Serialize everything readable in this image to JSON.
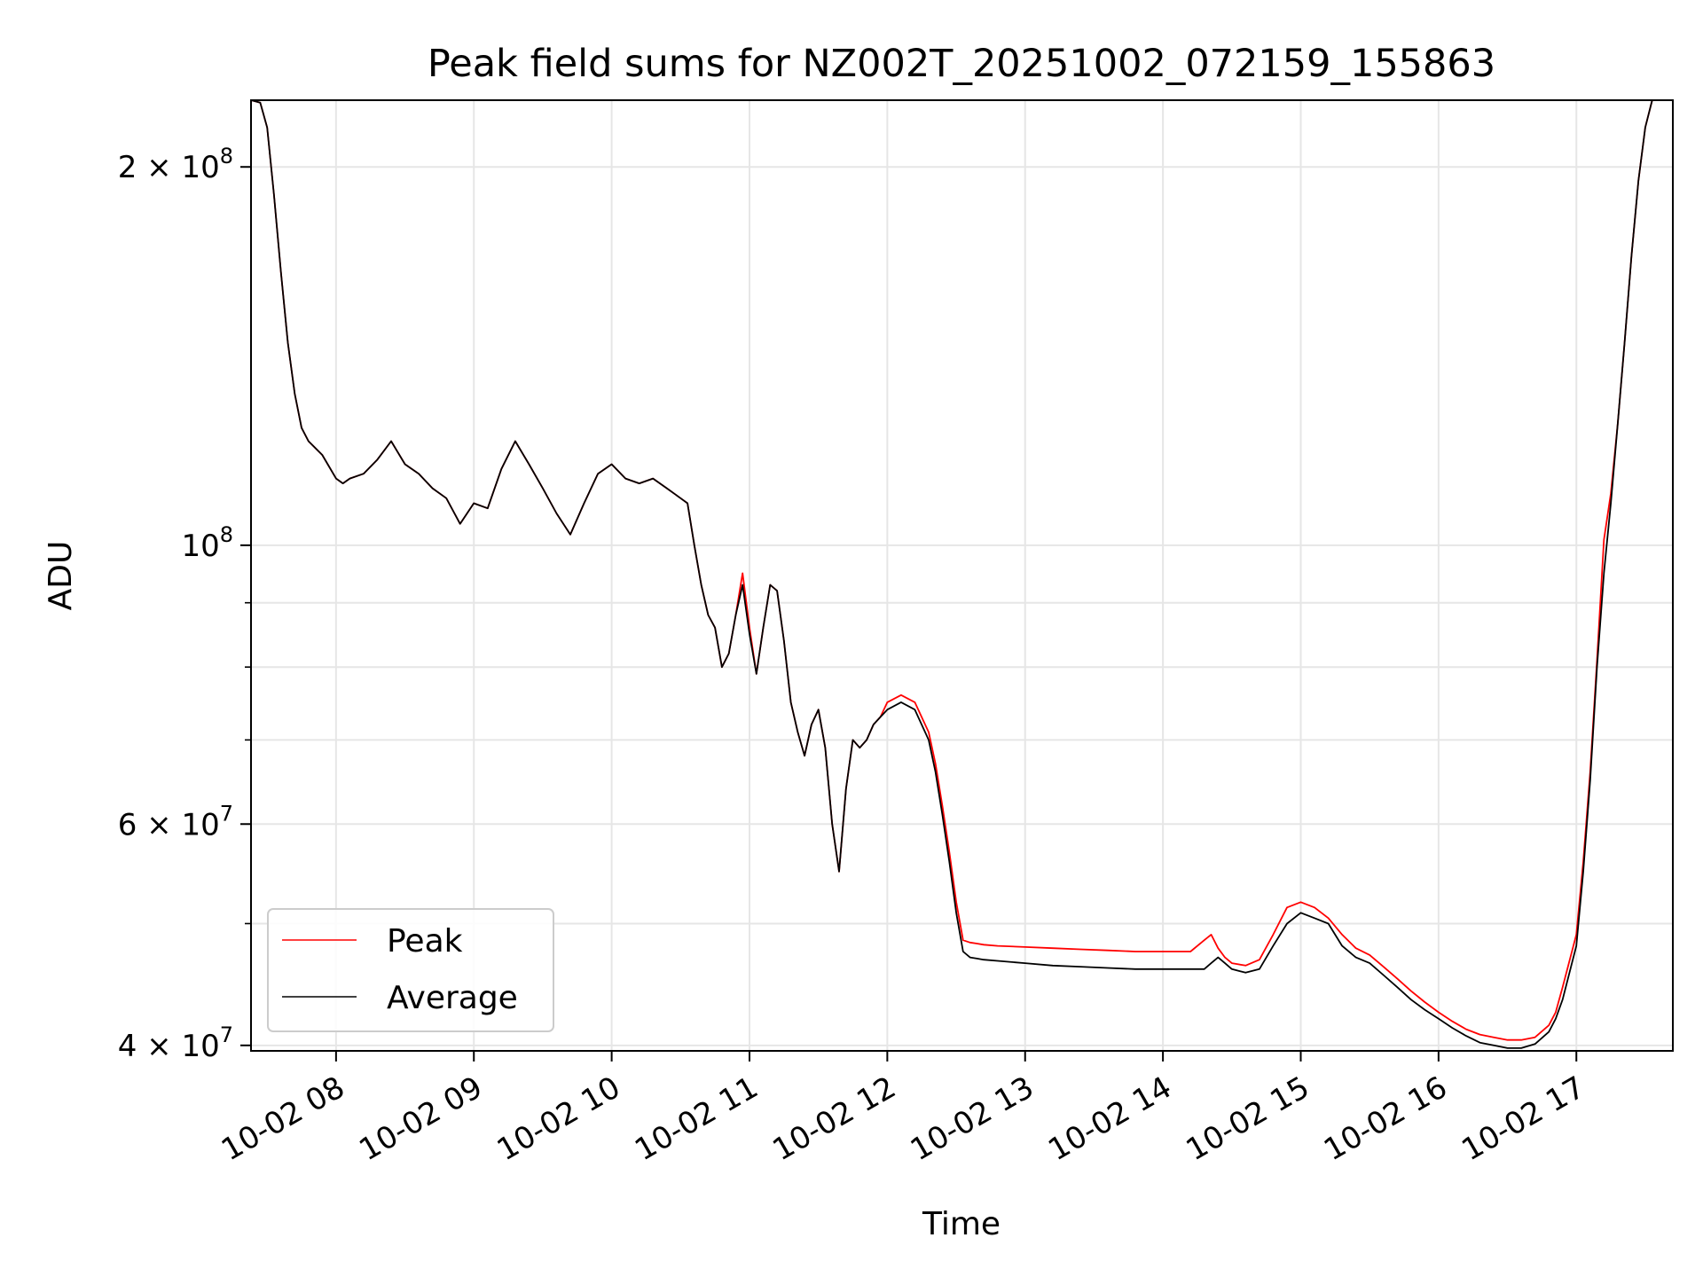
{
  "chart_data": {
    "type": "line",
    "title": "Peak field sums for NZ002T_20251002_072159_155863",
    "xlabel": "Time",
    "ylabel": "ADU",
    "yscale": "log",
    "grid": true,
    "legend_position": "lower-left",
    "x_ticks": [
      "10-02 08",
      "10-02 09",
      "10-02 10",
      "10-02 11",
      "10-02 12",
      "10-02 13",
      "10-02 14",
      "10-02 15",
      "10-02 16",
      "10-02 17"
    ],
    "y_ticks": [
      {
        "value": 40000000,
        "label": "4 × 10^7",
        "base": "4 × 10",
        "exp": "7"
      },
      {
        "value": 60000000,
        "label": "6 × 10^7",
        "base": "6 × 10",
        "exp": "7"
      },
      {
        "value": 100000000,
        "label": "10^8",
        "base": "10",
        "exp": "8"
      },
      {
        "value": 200000000,
        "label": "2 × 10^8",
        "base": "2 × 10",
        "exp": "8"
      }
    ],
    "xlim_hours": [
      7.383,
      17.7
    ],
    "ylim": [
      39600000,
      226000000
    ],
    "colors": {
      "peak": "#ff0000",
      "average": "#000000"
    },
    "series": [
      {
        "name": "Average",
        "x_hours": [
          7.383,
          7.45,
          7.5,
          7.55,
          7.6,
          7.65,
          7.7,
          7.75,
          7.8,
          7.9,
          8.0,
          8.05,
          8.1,
          8.2,
          8.3,
          8.4,
          8.5,
          8.6,
          8.7,
          8.8,
          8.9,
          9.0,
          9.1,
          9.2,
          9.3,
          9.4,
          9.5,
          9.6,
          9.7,
          9.8,
          9.9,
          10.0,
          10.1,
          10.2,
          10.3,
          10.4,
          10.5,
          10.55,
          10.6,
          10.65,
          10.7,
          10.75,
          10.8,
          10.85,
          10.9,
          10.95,
          11.0,
          11.05,
          11.1,
          11.15,
          11.2,
          11.25,
          11.3,
          11.35,
          11.4,
          11.45,
          11.5,
          11.55,
          11.6,
          11.65,
          11.7,
          11.75,
          11.8,
          11.85,
          11.9,
          11.95,
          12.0,
          12.1,
          12.2,
          12.3,
          12.35,
          12.4,
          12.45,
          12.5,
          12.55,
          12.6,
          12.65,
          12.7,
          12.8,
          13.0,
          13.2,
          13.4,
          13.6,
          13.8,
          14.0,
          14.2,
          14.3,
          14.35,
          14.4,
          14.45,
          14.5,
          14.6,
          14.7,
          14.8,
          14.9,
          15.0,
          15.1,
          15.2,
          15.3,
          15.4,
          15.5,
          15.6,
          15.7,
          15.8,
          15.9,
          16.0,
          16.1,
          16.2,
          16.3,
          16.4,
          16.5,
          16.6,
          16.7,
          16.8,
          16.85,
          16.9,
          17.0,
          17.05,
          17.1,
          17.15,
          17.2,
          17.25,
          17.3,
          17.35,
          17.4,
          17.45,
          17.5,
          17.55,
          17.6,
          17.7
        ],
        "values": [
          226000000,
          225000000,
          215000000,
          190000000,
          165000000,
          145000000,
          132000000,
          124000000,
          121000000,
          118000000,
          113000000,
          112000000,
          113000000,
          114000000,
          117000000,
          121000000,
          116000000,
          114000000,
          111000000,
          109000000,
          104000000,
          108000000,
          107000000,
          115000000,
          121000000,
          116000000,
          111000000,
          106000000,
          102000000,
          108000000,
          114000000,
          116000000,
          113000000,
          112000000,
          113000000,
          111000000,
          109000000,
          108000000,
          100000000,
          93000000,
          88000000,
          86000000,
          80000000,
          82000000,
          88000000,
          93000000,
          85000000,
          79000000,
          86000000,
          93000000,
          92000000,
          84000000,
          75000000,
          71000000,
          68000000,
          72000000,
          74000000,
          69000000,
          60000000,
          55000000,
          64000000,
          70000000,
          69000000,
          70000000,
          72000000,
          73000000,
          74000000,
          75000000,
          74000000,
          70000000,
          66000000,
          61000000,
          56000000,
          51000000,
          47500000,
          47000000,
          46900000,
          46800000,
          46700000,
          46500000,
          46300000,
          46200000,
          46100000,
          46000000,
          46000000,
          46000000,
          46000000,
          46500000,
          47000000,
          46500000,
          46000000,
          45700000,
          46000000,
          48000000,
          50000000,
          51000000,
          50500000,
          50000000,
          48000000,
          47000000,
          46500000,
          45500000,
          44500000,
          43500000,
          42700000,
          42000000,
          41300000,
          40700000,
          40200000,
          40000000,
          39800000,
          39800000,
          40100000,
          41000000,
          42000000,
          43500000,
          48000000,
          55000000,
          65000000,
          80000000,
          95000000,
          108000000,
          125000000,
          145000000,
          170000000,
          195000000,
          215000000,
          226000000,
          226000000,
          226000000
        ]
      },
      {
        "name": "Peak",
        "x_hours": [
          7.383,
          7.45,
          7.5,
          7.55,
          7.6,
          7.65,
          7.7,
          7.75,
          7.8,
          7.9,
          8.0,
          8.05,
          8.1,
          8.2,
          8.3,
          8.4,
          8.5,
          8.6,
          8.7,
          8.8,
          8.9,
          9.0,
          9.1,
          9.2,
          9.3,
          9.4,
          9.5,
          9.6,
          9.7,
          9.8,
          9.9,
          10.0,
          10.1,
          10.2,
          10.3,
          10.4,
          10.5,
          10.55,
          10.6,
          10.65,
          10.7,
          10.75,
          10.8,
          10.85,
          10.9,
          10.95,
          11.0,
          11.05,
          11.1,
          11.15,
          11.2,
          11.25,
          11.3,
          11.35,
          11.4,
          11.45,
          11.5,
          11.55,
          11.6,
          11.65,
          11.7,
          11.75,
          11.8,
          11.85,
          11.9,
          11.95,
          12.0,
          12.1,
          12.2,
          12.3,
          12.35,
          12.4,
          12.45,
          12.5,
          12.55,
          12.6,
          12.65,
          12.7,
          12.8,
          13.0,
          13.2,
          13.4,
          13.6,
          13.8,
          14.0,
          14.2,
          14.3,
          14.35,
          14.4,
          14.45,
          14.5,
          14.6,
          14.7,
          14.8,
          14.9,
          15.0,
          15.1,
          15.2,
          15.3,
          15.4,
          15.5,
          15.6,
          15.7,
          15.8,
          15.9,
          16.0,
          16.1,
          16.2,
          16.3,
          16.4,
          16.5,
          16.6,
          16.7,
          16.8,
          16.85,
          16.9,
          17.0,
          17.05,
          17.1,
          17.15,
          17.2,
          17.25,
          17.3,
          17.35,
          17.4,
          17.45,
          17.5,
          17.55,
          17.6,
          17.7
        ],
        "values": [
          226000000,
          225000000,
          215000000,
          190000000,
          165000000,
          145000000,
          132000000,
          124000000,
          121000000,
          118000000,
          113000000,
          112000000,
          113000000,
          114000000,
          117000000,
          121000000,
          116000000,
          114000000,
          111000000,
          109000000,
          104000000,
          108000000,
          107000000,
          115000000,
          121000000,
          116000000,
          111000000,
          106000000,
          102000000,
          108000000,
          114000000,
          116000000,
          113000000,
          112000000,
          113000000,
          111000000,
          109000000,
          108000000,
          100000000,
          93000000,
          88000000,
          86000000,
          80000000,
          82000000,
          88000000,
          95000000,
          86000000,
          79000000,
          86000000,
          93000000,
          92000000,
          84000000,
          75000000,
          71000000,
          68000000,
          72000000,
          74000000,
          69000000,
          60000000,
          55000000,
          64000000,
          70000000,
          69000000,
          70000000,
          72000000,
          73000000,
          75000000,
          76000000,
          75000000,
          71000000,
          67000000,
          62000000,
          57000000,
          52000000,
          48500000,
          48300000,
          48200000,
          48100000,
          48000000,
          47900000,
          47800000,
          47700000,
          47600000,
          47500000,
          47500000,
          47500000,
          48500000,
          49000000,
          47800000,
          47000000,
          46500000,
          46300000,
          46800000,
          49000000,
          51500000,
          52000000,
          51500000,
          50500000,
          49000000,
          47800000,
          47200000,
          46200000,
          45200000,
          44200000,
          43300000,
          42500000,
          41800000,
          41200000,
          40800000,
          40600000,
          40400000,
          40400000,
          40600000,
          41500000,
          42500000,
          44500000,
          49000000,
          56000000,
          66000000,
          81000000,
          101000000,
          110000000,
          125000000,
          145000000,
          170000000,
          195000000,
          215000000,
          226000000,
          226000000,
          226000000
        ]
      }
    ]
  }
}
